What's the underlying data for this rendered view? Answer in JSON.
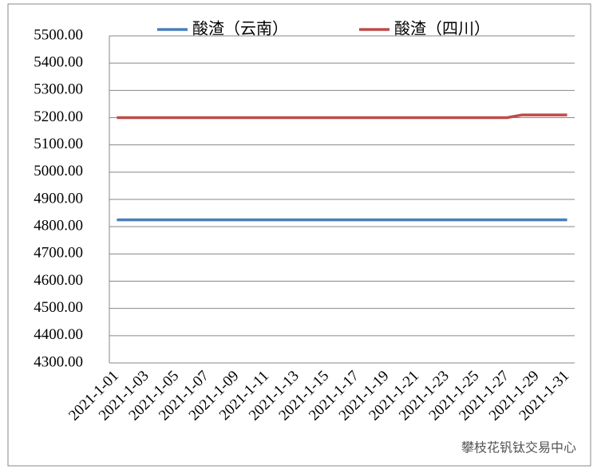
{
  "chart_data": {
    "type": "line",
    "categories": [
      "2021-1-01",
      null,
      "2021-1-03",
      null,
      "2021-1-05",
      null,
      "2021-1-07",
      null,
      "2021-1-09",
      null,
      "2021-1-11",
      null,
      "2021-1-13",
      null,
      "2021-1-15",
      null,
      "2021-1-17",
      null,
      "2021-1-19",
      null,
      "2021-1-21",
      null,
      "2021-1-23",
      null,
      "2021-1-25",
      null,
      "2021-1-27",
      null,
      "2021-1-29",
      null,
      "2021-1-31"
    ],
    "series": [
      {
        "name": "酸渣（云南）",
        "color": "#4a7ebb",
        "values": [
          4825,
          4825,
          4825,
          4825,
          4825,
          4825,
          4825,
          4825,
          4825,
          4825,
          4825,
          4825,
          4825,
          4825,
          4825,
          4825,
          4825,
          4825,
          4825,
          4825,
          4825,
          4825,
          4825,
          4825,
          4825,
          4825,
          4825,
          4825,
          4825,
          4825,
          4825
        ]
      },
      {
        "name": "酸渣（四川）",
        "color": "#be4b48",
        "values": [
          5200,
          5200,
          5200,
          5200,
          5200,
          5200,
          5200,
          5200,
          5200,
          5200,
          5200,
          5200,
          5200,
          5200,
          5200,
          5200,
          5200,
          5200,
          5200,
          5200,
          5200,
          5200,
          5200,
          5200,
          5200,
          5200,
          5200,
          5210,
          5210,
          5210,
          5210
        ]
      }
    ],
    "ylim": [
      4300,
      5500
    ],
    "yticks": [
      {
        "value": 4300,
        "label": "4300.00"
      },
      {
        "value": 4400,
        "label": "4400.00"
      },
      {
        "value": 4500,
        "label": "4500.00"
      },
      {
        "value": 4600,
        "label": "4600.00"
      },
      {
        "value": 4700,
        "label": "4700.00"
      },
      {
        "value": 4800,
        "label": "4800.00"
      },
      {
        "value": 4900,
        "label": "4900.00"
      },
      {
        "value": 5000,
        "label": "5000.00"
      },
      {
        "value": 5100,
        "label": "5100.00"
      },
      {
        "value": 5200,
        "label": "5200.00"
      },
      {
        "value": 5300,
        "label": "5300.00"
      },
      {
        "value": 5400,
        "label": "5400.00"
      },
      {
        "value": 5500,
        "label": "5500.00"
      }
    ],
    "grid": true,
    "legend": "top",
    "annotation": "攀枝花钒钛交易中心"
  }
}
